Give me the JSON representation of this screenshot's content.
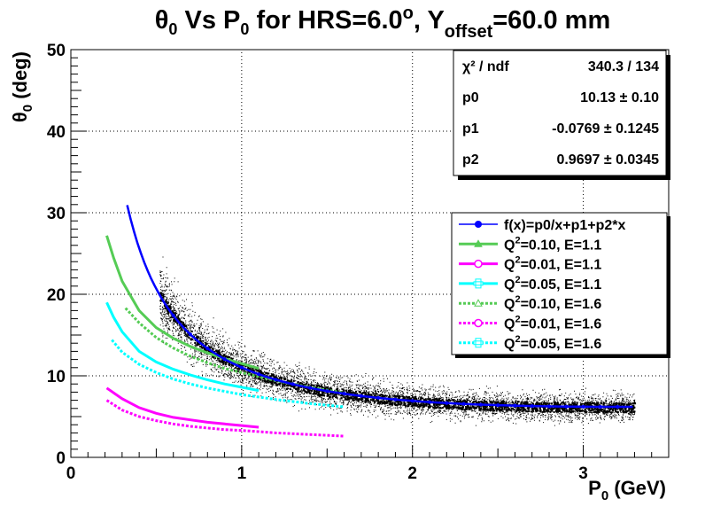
{
  "chart_data": {
    "type": "scatter",
    "title": {
      "p1": "θ",
      "p1sub": "0",
      "p2": " Vs P",
      "p2sub": "0",
      "p3": " for HRS=6.0",
      "p3sup": "o",
      "p4": ", Y",
      "p4sub": "offset",
      "p5": "=60.0 mm"
    },
    "xlabel": {
      "main": "P",
      "sub": "0",
      "rest": " (GeV)"
    },
    "ylabel": {
      "main": "θ",
      "sub": "0",
      "rest": " (deg)"
    },
    "xlim": [
      0,
      3.5
    ],
    "ylim": [
      0,
      50
    ],
    "xticks": [
      "0",
      "1",
      "2",
      "3"
    ],
    "yticks": [
      "0",
      "10",
      "20",
      "30",
      "40",
      "50"
    ],
    "grid": true,
    "stats": {
      "rows": [
        {
          "label": "χ² / ndf",
          "value": "340.3 / 134"
        },
        {
          "label": "p0",
          "value": "10.13 ± 0.10"
        },
        {
          "label": "p1",
          "value": "-0.0769 ± 0.1245"
        },
        {
          "label": "p2",
          "value": "0.9697 ± 0.0345"
        }
      ],
      "placement": "top-right"
    },
    "fit": {
      "name": "f(x)=p0/x+p1+p2*x",
      "color": "#0000ff",
      "p0": 10.13,
      "p1": -0.0769,
      "p2": 0.9697,
      "x_range": [
        0.33,
        3.3
      ]
    },
    "scatter": {
      "color": "#000000",
      "x_range": [
        0.52,
        3.3
      ],
      "description": "dense black point cloud following fit curve"
    },
    "series": [
      {
        "name": "Q²=0.10, E=1.1",
        "color": "#55cc55",
        "style": "solid",
        "marker": "triangle",
        "x": [
          0.21,
          0.25,
          0.3,
          0.4,
          0.5,
          0.6,
          0.7,
          0.8,
          0.9,
          1.0,
          1.1
        ],
        "y": [
          27.2,
          24.5,
          21.6,
          18.0,
          15.9,
          14.6,
          13.6,
          12.8,
          12.1,
          11.5,
          10.9
        ]
      },
      {
        "name": "Q²=0.01, E=1.1",
        "color": "#ff00ff",
        "style": "solid",
        "marker": "circle",
        "x": [
          0.21,
          0.3,
          0.4,
          0.5,
          0.6,
          0.7,
          0.8,
          0.9,
          1.0,
          1.1
        ],
        "y": [
          8.5,
          7.2,
          6.1,
          5.4,
          4.9,
          4.6,
          4.3,
          4.1,
          3.9,
          3.7
        ]
      },
      {
        "name": "Q²=0.05, E=1.1",
        "color": "#00ffff",
        "style": "solid",
        "marker": "cross",
        "x": [
          0.21,
          0.25,
          0.3,
          0.4,
          0.5,
          0.6,
          0.7,
          0.8,
          0.9,
          1.0,
          1.1
        ],
        "y": [
          19.0,
          17.2,
          15.4,
          13.0,
          11.7,
          10.8,
          10.1,
          9.5,
          9.0,
          8.6,
          8.2
        ]
      },
      {
        "name": "Q²=0.10, E=1.6",
        "color": "#55cc55",
        "style": "dashed",
        "marker": "triangle-open",
        "x": [
          0.32,
          0.4,
          0.5,
          0.6,
          0.7,
          0.8,
          0.9,
          1.0,
          1.2,
          1.4,
          1.6
        ],
        "y": [
          18.3,
          16.5,
          14.7,
          13.4,
          12.4,
          11.6,
          10.9,
          10.4,
          9.4,
          8.6,
          7.9
        ]
      },
      {
        "name": "Q²=0.01, E=1.6",
        "color": "#ff00ff",
        "style": "dashed",
        "marker": "circle-open",
        "x": [
          0.21,
          0.3,
          0.4,
          0.5,
          0.6,
          0.7,
          0.8,
          0.9,
          1.0,
          1.2,
          1.4,
          1.6
        ],
        "y": [
          7.0,
          5.8,
          5.0,
          4.5,
          4.1,
          3.8,
          3.6,
          3.4,
          3.3,
          3.0,
          2.8,
          2.6
        ]
      },
      {
        "name": "Q²=0.05, E=1.6",
        "color": "#00ffff",
        "style": "dashed",
        "marker": "cross-open",
        "x": [
          0.24,
          0.3,
          0.4,
          0.5,
          0.6,
          0.7,
          0.8,
          0.9,
          1.0,
          1.2,
          1.4,
          1.6
        ],
        "y": [
          14.4,
          12.9,
          11.4,
          10.4,
          9.6,
          9.0,
          8.5,
          8.1,
          7.7,
          7.1,
          6.6,
          6.2
        ]
      }
    ],
    "legend_placement": "right"
  }
}
